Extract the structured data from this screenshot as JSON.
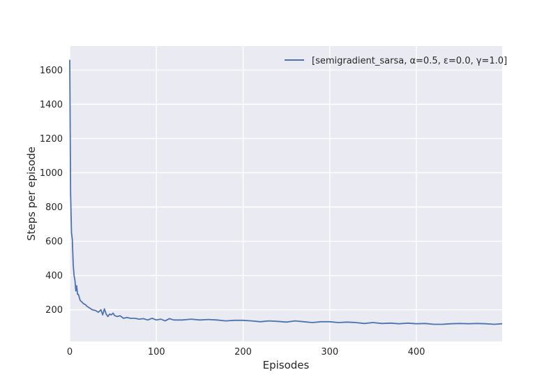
{
  "chart_data": {
    "type": "line",
    "xlabel": "Episodes",
    "ylabel": "Steps per episode",
    "xlim": [
      0,
      499
    ],
    "ylim": [
      15,
      1740
    ],
    "xticks": [
      0,
      100,
      200,
      300,
      400
    ],
    "yticks": [
      200,
      400,
      600,
      800,
      1000,
      1200,
      1400,
      1600
    ],
    "grid": true,
    "legend_position": "top-right",
    "background_color": "#eaeaf2",
    "grid_color": "#ffffff",
    "series": [
      {
        "name": "[semigradient_sarsa, α=0.5, ε=0.0, γ=1.0]",
        "color": "#4c72b0",
        "x": [
          0,
          1,
          2,
          3,
          4,
          5,
          6,
          7,
          8,
          9,
          10,
          12,
          14,
          16,
          18,
          20,
          23,
          26,
          30,
          33,
          36,
          38,
          40,
          42,
          44,
          46,
          48,
          50,
          52,
          55,
          58,
          62,
          66,
          70,
          75,
          80,
          85,
          90,
          95,
          100,
          105,
          110,
          115,
          120,
          130,
          140,
          150,
          160,
          170,
          180,
          190,
          200,
          210,
          220,
          230,
          240,
          250,
          260,
          270,
          280,
          290,
          300,
          310,
          320,
          330,
          340,
          350,
          360,
          370,
          380,
          390,
          400,
          410,
          420,
          430,
          440,
          450,
          460,
          470,
          480,
          490,
          499
        ],
        "y": [
          1660,
          880,
          650,
          610,
          460,
          400,
          370,
          310,
          340,
          290,
          290,
          255,
          245,
          235,
          230,
          220,
          210,
          200,
          195,
          185,
          200,
          170,
          205,
          175,
          160,
          175,
          170,
          180,
          165,
          160,
          165,
          150,
          155,
          150,
          150,
          145,
          148,
          140,
          150,
          140,
          145,
          135,
          148,
          140,
          140,
          145,
          140,
          143,
          140,
          135,
          138,
          138,
          135,
          130,
          135,
          132,
          128,
          135,
          130,
          125,
          130,
          130,
          125,
          128,
          125,
          120,
          125,
          120,
          122,
          118,
          122,
          118,
          120,
          115,
          115,
          118,
          120,
          118,
          120,
          118,
          115,
          118
        ]
      }
    ]
  }
}
